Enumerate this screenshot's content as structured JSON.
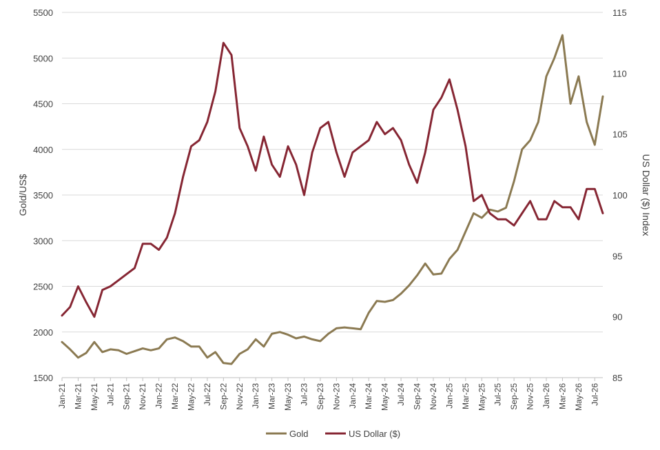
{
  "chart_data": {
    "type": "line",
    "title": "",
    "xlabel": "",
    "ylabel": "Gold/US$",
    "y2label": "US Dollar ($) Index",
    "ylim": [
      1500,
      5500
    ],
    "yticks": [
      1500,
      2000,
      2500,
      3000,
      3500,
      4000,
      4500,
      5000,
      5500
    ],
    "y2lim": [
      85,
      115
    ],
    "y2ticks": [
      85,
      90,
      95,
      100,
      105,
      110,
      115
    ],
    "grid": "horizontal",
    "legend_position": "bottom",
    "x_start": "2021-01",
    "x_end": "2026-08",
    "xticks": [
      "Jan-21",
      "Mar-21",
      "May-21",
      "Jul-21",
      "Sep-21",
      "Nov-21",
      "Jan-22",
      "Mar-22",
      "May-22",
      "Jul-22",
      "Sep-22",
      "Nov-22",
      "Jan-23",
      "Mar-23",
      "May-23",
      "Jul-23",
      "Sep-23",
      "Nov-23",
      "Jan-24",
      "Mar-24",
      "May-24",
      "Jul-24",
      "Sep-24",
      "Nov-24",
      "Jan-25",
      "Mar-25",
      "May-25",
      "Jul-25",
      "Sep-25",
      "Nov-25",
      "Jan-26",
      "Mar-26",
      "May-26",
      "Jul-26"
    ],
    "series": [
      {
        "name": "Gold",
        "axis": "left",
        "color": "#8B7A52",
        "x": [
          "2021-01",
          "2021-02",
          "2021-03",
          "2021-04",
          "2021-05",
          "2021-06",
          "2021-07",
          "2021-08",
          "2021-09",
          "2021-10",
          "2021-11",
          "2021-12",
          "2022-01",
          "2022-02",
          "2022-03",
          "2022-04",
          "2022-05",
          "2022-06",
          "2022-07",
          "2022-08",
          "2022-09",
          "2022-10",
          "2022-11",
          "2022-12",
          "2023-01",
          "2023-02",
          "2023-03",
          "2023-04",
          "2023-05",
          "2023-06",
          "2023-07",
          "2023-08",
          "2023-09",
          "2023-10",
          "2023-11",
          "2023-12",
          "2024-01",
          "2024-02",
          "2024-03",
          "2024-04",
          "2024-05",
          "2024-06",
          "2024-07",
          "2024-08",
          "2024-09",
          "2024-10",
          "2024-11",
          "2024-12",
          "2025-01",
          "2025-02",
          "2025-03",
          "2025-04",
          "2025-05",
          "2025-06",
          "2025-07",
          "2025-08",
          "2025-09",
          "2025-10",
          "2025-11",
          "2025-12",
          "2026-01",
          "2026-02",
          "2026-03",
          "2026-04",
          "2026-05",
          "2026-06",
          "2026-07",
          "2026-08"
        ],
        "values": [
          1890,
          1810,
          1720,
          1770,
          1890,
          1780,
          1810,
          1800,
          1760,
          1790,
          1820,
          1800,
          1820,
          1920,
          1940,
          1900,
          1840,
          1840,
          1720,
          1780,
          1660,
          1650,
          1760,
          1810,
          1920,
          1840,
          1980,
          2000,
          1970,
          1930,
          1950,
          1920,
          1900,
          1980,
          2040,
          2050,
          2040,
          2030,
          2210,
          2340,
          2330,
          2350,
          2420,
          2510,
          2620,
          2750,
          2630,
          2640,
          2800,
          2900,
          3100,
          3300,
          3250,
          3340,
          3320,
          3360,
          3650,
          4000,
          4100,
          4300,
          4800,
          5000,
          5250,
          4500,
          4800,
          4300,
          4050,
          4580
        ]
      },
      {
        "name": "US Dollar ($)",
        "axis": "right",
        "color": "#862633",
        "x": [
          "2021-01",
          "2021-02",
          "2021-03",
          "2021-04",
          "2021-05",
          "2021-06",
          "2021-07",
          "2021-08",
          "2021-09",
          "2021-10",
          "2021-11",
          "2021-12",
          "2022-01",
          "2022-02",
          "2022-03",
          "2022-04",
          "2022-05",
          "2022-06",
          "2022-07",
          "2022-08",
          "2022-09",
          "2022-10",
          "2022-11",
          "2022-12",
          "2023-01",
          "2023-02",
          "2023-03",
          "2023-04",
          "2023-05",
          "2023-06",
          "2023-07",
          "2023-08",
          "2023-09",
          "2023-10",
          "2023-11",
          "2023-12",
          "2024-01",
          "2024-02",
          "2024-03",
          "2024-04",
          "2024-05",
          "2024-06",
          "2024-07",
          "2024-08",
          "2024-09",
          "2024-10",
          "2024-11",
          "2024-12",
          "2025-01",
          "2025-02",
          "2025-03",
          "2025-04",
          "2025-05",
          "2025-06",
          "2025-07",
          "2025-08",
          "2025-09",
          "2025-10",
          "2025-11",
          "2025-12",
          "2026-01",
          "2026-02",
          "2026-03",
          "2026-04",
          "2026-05",
          "2026-06",
          "2026-07",
          "2026-08"
        ],
        "values": [
          90.1,
          90.8,
          92.5,
          91.2,
          90.0,
          92.2,
          92.5,
          93.0,
          93.5,
          94.0,
          96.0,
          96.0,
          95.5,
          96.5,
          98.5,
          101.5,
          104.0,
          104.5,
          106.0,
          108.5,
          112.5,
          111.5,
          105.5,
          104.0,
          102.0,
          104.8,
          102.5,
          101.5,
          104.0,
          102.5,
          100.0,
          103.5,
          105.5,
          106.0,
          103.5,
          101.5,
          103.5,
          104.0,
          104.5,
          106.0,
          105.0,
          105.5,
          104.5,
          102.5,
          101.0,
          103.5,
          107.0,
          108.0,
          109.5,
          107.0,
          104.0,
          99.5,
          100.0,
          98.5,
          98.0,
          98.0,
          97.5,
          98.5,
          99.5,
          98.0,
          98.0,
          99.5,
          99.0,
          99.0,
          98.0,
          100.5,
          100.5,
          98.5
        ]
      }
    ]
  }
}
